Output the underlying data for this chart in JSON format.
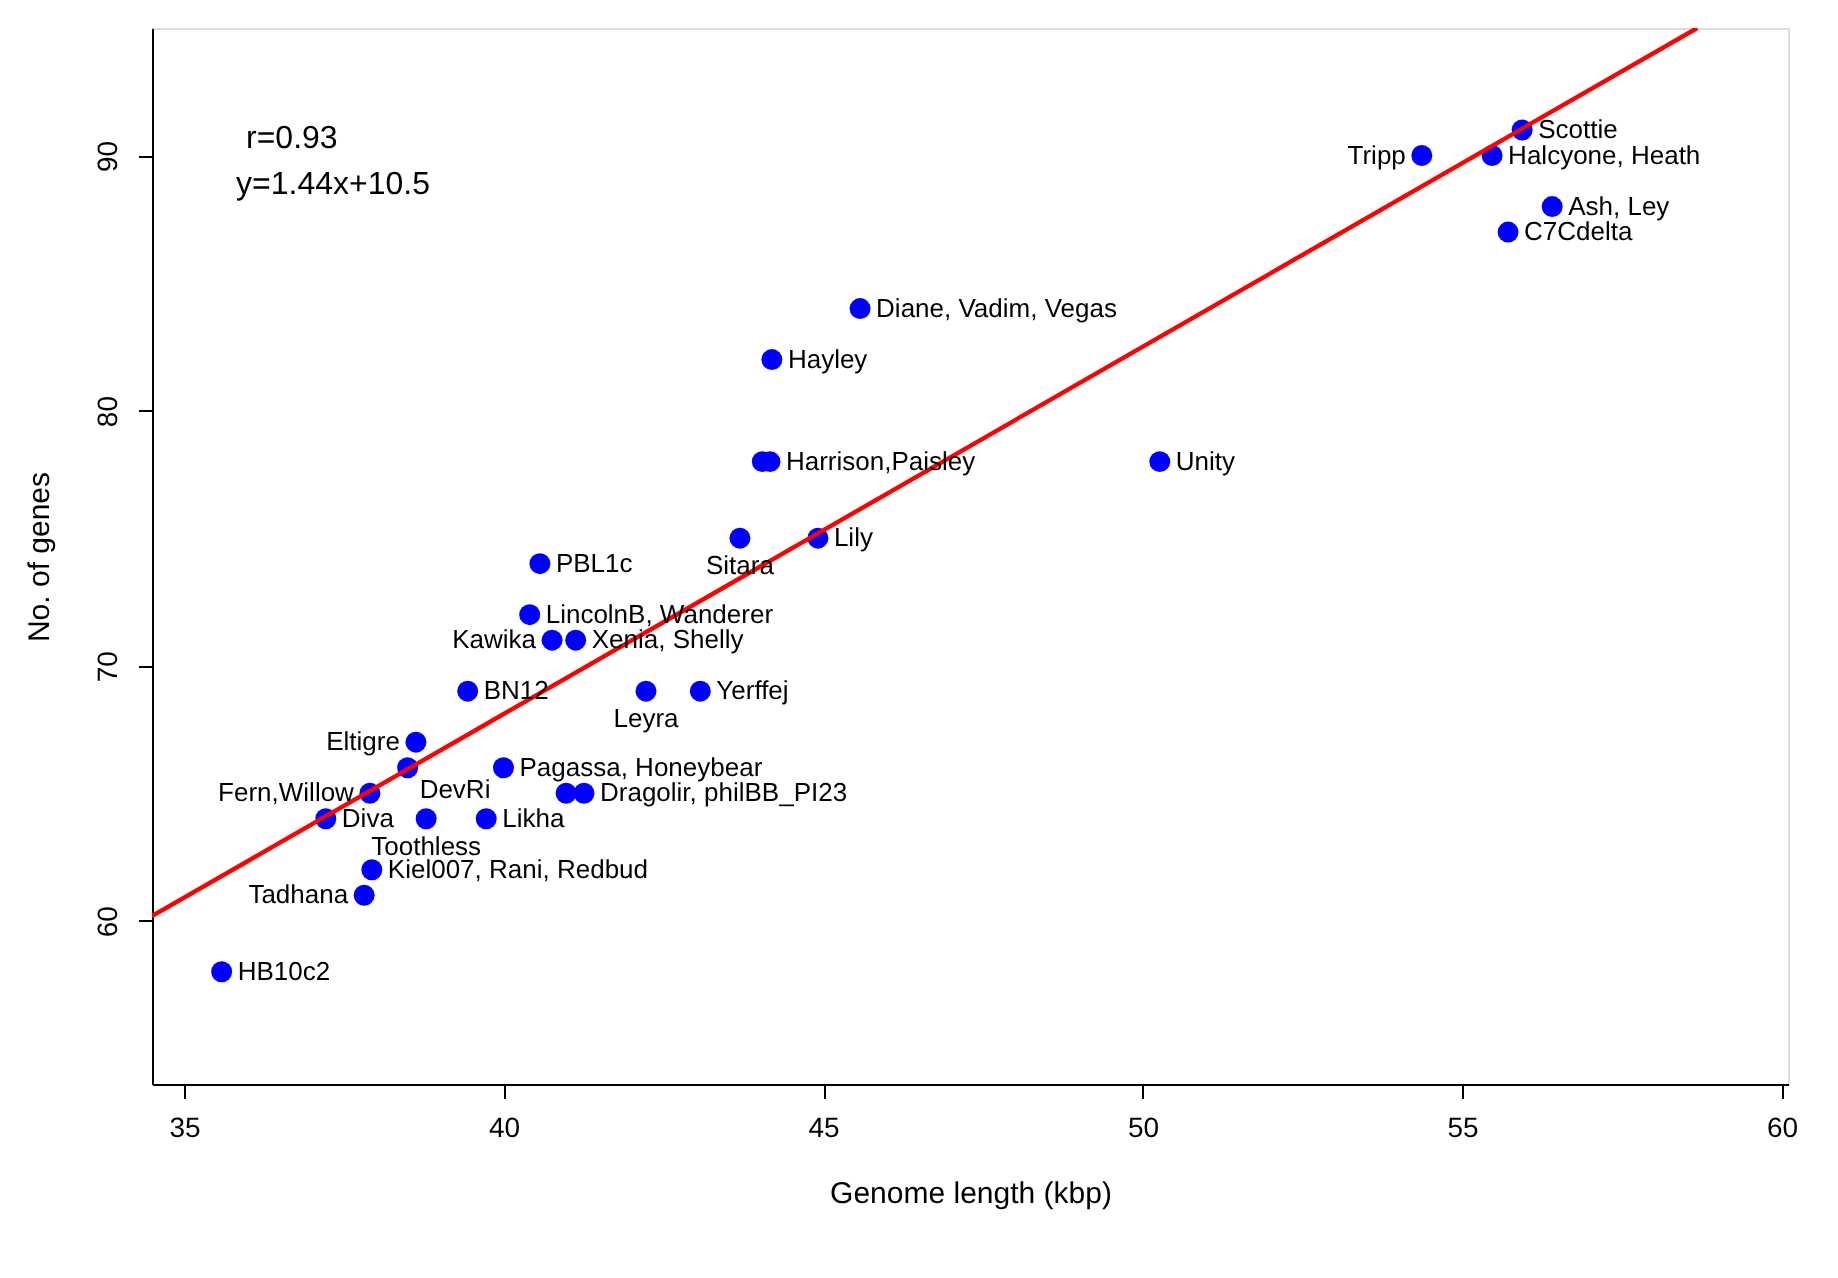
{
  "chart_data": {
    "type": "scatter",
    "xlabel": "Genome length (kbp)",
    "ylabel": "No. of genes",
    "xlim": [
      34.5,
      60.1
    ],
    "ylim": [
      53.6,
      95
    ],
    "xticks": [
      35,
      40,
      45,
      50,
      55,
      60
    ],
    "yticks": [
      60,
      70,
      80,
      90
    ],
    "grid": false,
    "series": [
      {
        "marker": "circle",
        "color": "#0000ff",
        "x": [
          35.59,
          37.82,
          37.94,
          37.22,
          37.91,
          38.5,
          38.63,
          38.79,
          39.73,
          39.44,
          40.0,
          40.98,
          41.26,
          40.76,
          41.13,
          40.41,
          40.57,
          42.23,
          43.08,
          43.7,
          44.92,
          44.05,
          44.17,
          44.2,
          45.58,
          50.27,
          54.37,
          55.47,
          55.94,
          56.41,
          55.72
        ],
        "values": [
          58,
          61,
          62,
          64,
          65,
          66,
          67,
          64,
          64,
          69,
          66,
          65,
          65,
          71,
          71,
          72,
          74,
          69,
          69,
          75,
          75,
          78,
          78,
          82,
          84,
          78,
          90,
          90,
          91,
          88,
          87
        ]
      },
      {
        "type": "line",
        "marker": "none",
        "color": "#ff0000",
        "line_style": "solid",
        "x": [
          34.5,
          58.68
        ],
        "values": [
          60.18,
          95.0
        ]
      }
    ],
    "annotations": [
      {
        "text": "HB10c2",
        "x": 35.59,
        "y": 58
      },
      {
        "text": "Tadhana",
        "x": 37.82,
        "y": 61
      },
      {
        "text": "Kiel007, Rani, Redbud",
        "x": 37.94,
        "y": 62
      },
      {
        "text": "Diva",
        "x": 37.22,
        "y": 64
      },
      {
        "text": "Fern,Willow",
        "x": 37.91,
        "y": 65
      },
      {
        "text": "DevRi",
        "x": 38.5,
        "y": 66
      },
      {
        "text": "Eltigre",
        "x": 38.63,
        "y": 67
      },
      {
        "text": "Toothless",
        "x": 38.79,
        "y": 64
      },
      {
        "text": "Likha",
        "x": 39.73,
        "y": 64
      },
      {
        "text": "BN12",
        "x": 39.44,
        "y": 69
      },
      {
        "text": "Pagassa, Honeybear",
        "x": 40.0,
        "y": 66
      },
      {
        "text": "Dragolir, philBB_PI23",
        "x": 41.26,
        "y": 65
      },
      {
        "text": "Kawika",
        "x": 40.76,
        "y": 71
      },
      {
        "text": "Xenia, Shelly",
        "x": 41.13,
        "y": 71
      },
      {
        "text": "LincolnB, Wanderer",
        "x": 40.41,
        "y": 72
      },
      {
        "text": "PBL1c",
        "x": 40.57,
        "y": 74
      },
      {
        "text": "Leyra",
        "x": 42.23,
        "y": 69
      },
      {
        "text": "Yerffej",
        "x": 43.08,
        "y": 69
      },
      {
        "text": "Sitara",
        "x": 43.7,
        "y": 75
      },
      {
        "text": "Lily",
        "x": 44.92,
        "y": 75
      },
      {
        "text": "Harrison,Paisley",
        "x": 44.17,
        "y": 78
      },
      {
        "text": "Hayley",
        "x": 44.2,
        "y": 82
      },
      {
        "text": "Diane, Vadim, Vegas",
        "x": 45.58,
        "y": 84
      },
      {
        "text": "Unity",
        "x": 50.27,
        "y": 78
      },
      {
        "text": "Tripp",
        "x": 54.37,
        "y": 90
      },
      {
        "text": "Halcyone, Heath",
        "x": 55.47,
        "y": 90
      },
      {
        "text": "Scottie",
        "x": 55.94,
        "y": 91
      },
      {
        "text": "Ash, Ley",
        "x": 56.41,
        "y": 88
      },
      {
        "text": "C7Cdelta",
        "x": 55.72,
        "y": 87
      },
      "r=0.93",
      "y=1.44x+10.5"
    ]
  }
}
